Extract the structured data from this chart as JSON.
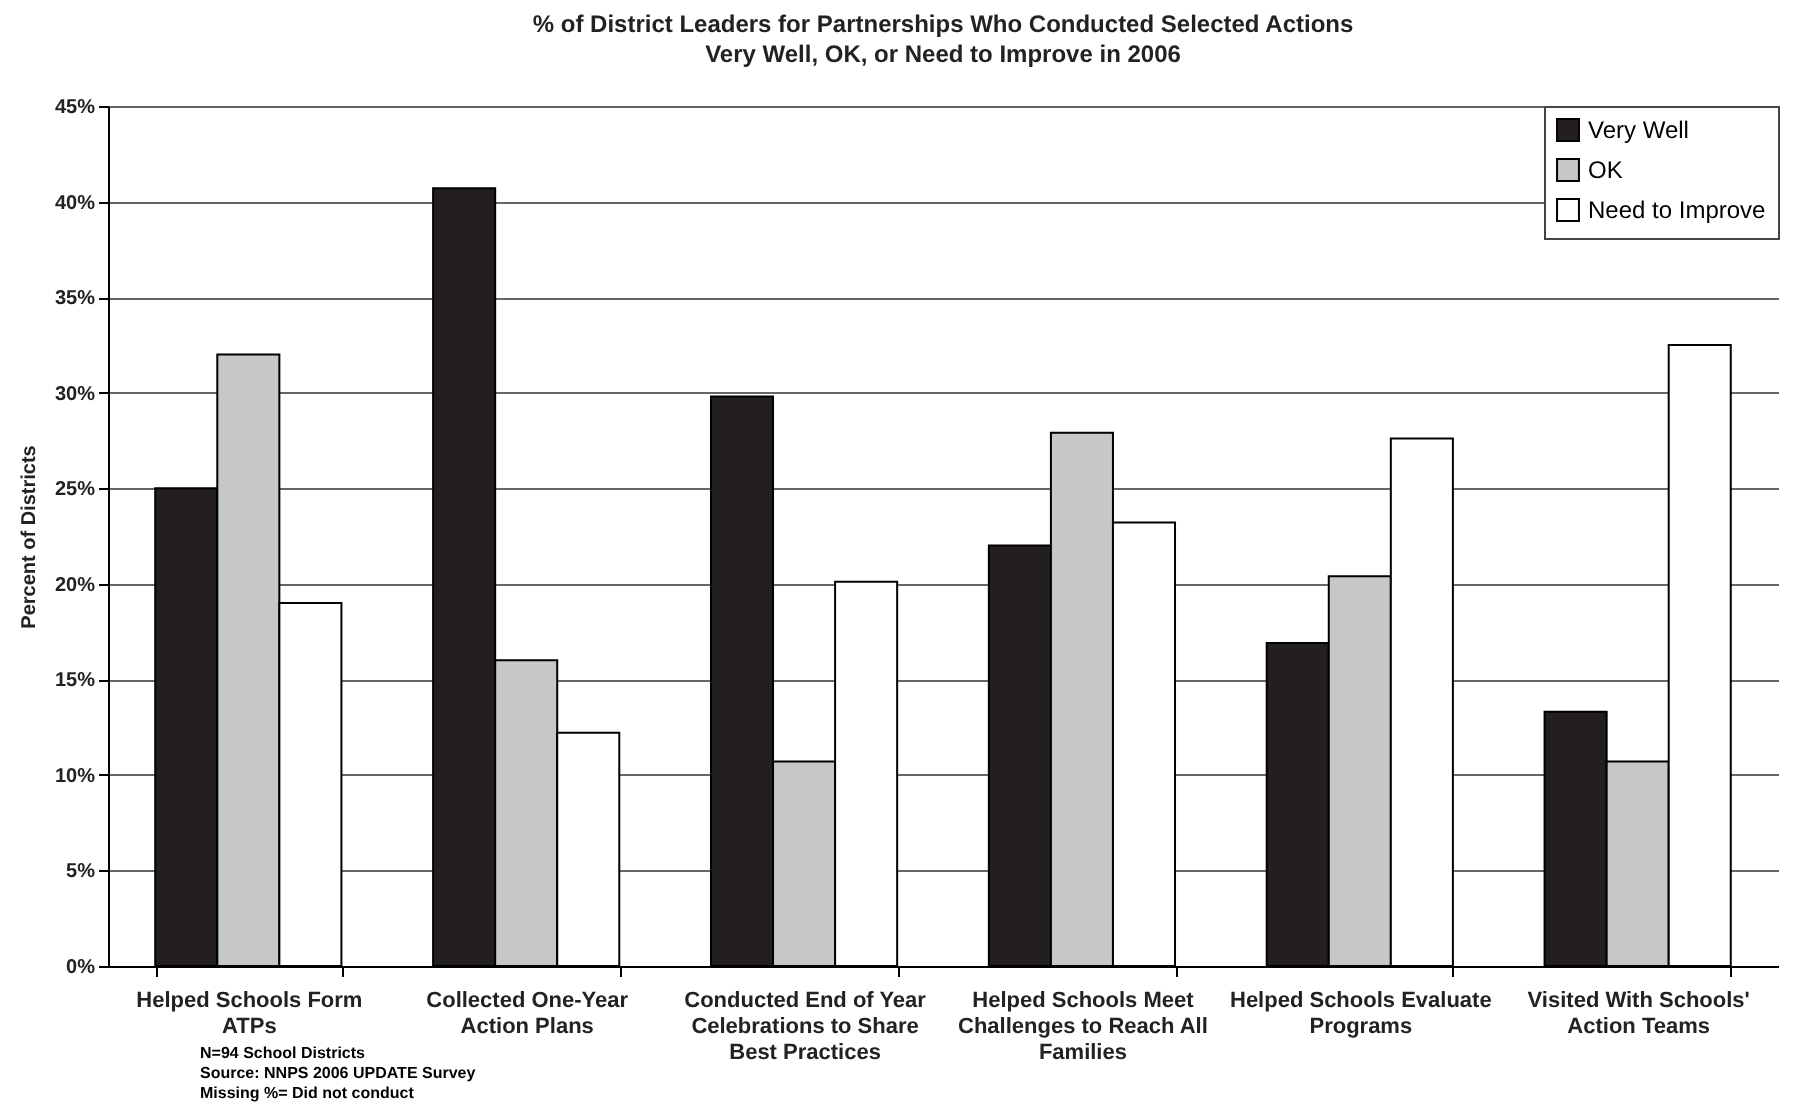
{
  "chart_data": {
    "type": "bar",
    "title": "% of District Leaders for Partnerships Who Conducted Selected Actions",
    "subtitle": "Very Well, OK, or Need to Improve in 2006",
    "ylabel": "Percent of Districts",
    "categories": [
      "Helped Schools Form ATPs",
      "Collected One-Year Action Plans",
      "Conducted End of Year Celebrations to Share Best Practices",
      "Helped Schools Meet Challenges to Reach All Families",
      "Helped Schools Evaluate Programs",
      "Visited With Schools' Action Teams"
    ],
    "series": [
      {
        "name": "Very Well",
        "color": "#231f20",
        "values": [
          25.0,
          40.7,
          29.8,
          22.0,
          16.9,
          13.3
        ]
      },
      {
        "name": "OK",
        "color": "#c6c7c9",
        "values": [
          32.0,
          16.0,
          10.7,
          27.9,
          20.4,
          10.7
        ]
      },
      {
        "name": "Need to Improve",
        "color": "#ffffff",
        "values": [
          19.0,
          12.2,
          20.1,
          23.2,
          27.6,
          32.5
        ]
      }
    ],
    "ylim": [
      0,
      45
    ],
    "yticks": [
      {
        "value": 0,
        "label": "0%"
      },
      {
        "value": 5,
        "label": "5%"
      },
      {
        "value": 10,
        "label": "10%"
      },
      {
        "value": 15,
        "label": "15%"
      },
      {
        "value": 20,
        "label": "20%"
      },
      {
        "value": 25,
        "label": "25%"
      },
      {
        "value": 30,
        "label": "30%"
      },
      {
        "value": 35,
        "label": "35%"
      },
      {
        "value": 40,
        "label": "40%"
      },
      {
        "value": 45,
        "label": "45%"
      }
    ],
    "grid": "y",
    "legend": "top right",
    "annotations": [
      "N=94 School Districts",
      "Source: NNPS 2006 UPDATE Survey",
      "Missing %= Did not conduct"
    ]
  }
}
